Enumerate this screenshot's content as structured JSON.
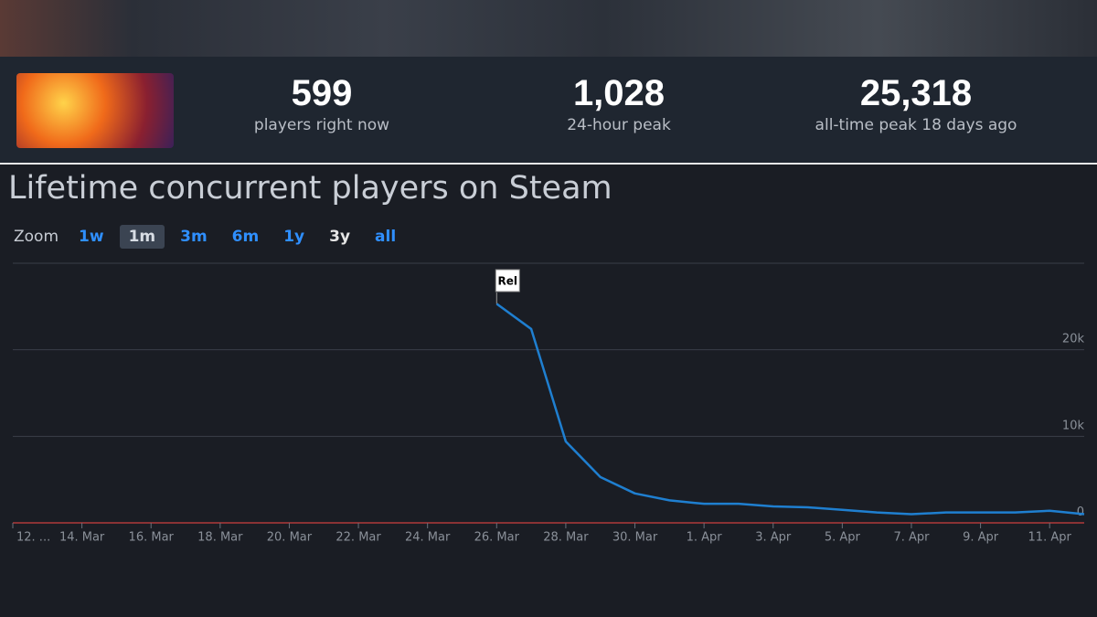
{
  "header": {
    "stats": [
      {
        "value": "599",
        "label": "players right now"
      },
      {
        "value": "1,028",
        "label": "24-hour peak"
      },
      {
        "value": "25,318",
        "label": "all-time peak 18 days ago"
      }
    ]
  },
  "zoom": {
    "label": "Zoom",
    "buttons": [
      "1w",
      "1m",
      "3m",
      "6m",
      "1y",
      "3y",
      "all"
    ]
  },
  "chart_data": {
    "type": "line",
    "title": "Lifetime concurrent players on Steam",
    "x": [
      "26. Mar",
      "27. Mar",
      "28. Mar",
      "29. Mar",
      "30. Mar",
      "31. Mar",
      "1. Apr",
      "2. Apr",
      "3. Apr",
      "4. Apr",
      "5. Apr",
      "6. Apr",
      "7. Apr",
      "8. Apr",
      "9. Apr",
      "10. Apr",
      "11. Apr",
      "12. Apr"
    ],
    "values": [
      25318,
      22400,
      9400,
      5300,
      3400,
      2600,
      2200,
      2200,
      1900,
      1800,
      1500,
      1200,
      1000,
      1200,
      1200,
      1200,
      1400,
      1000
    ],
    "color": "#1f7fd0",
    "xlim": [
      "12. Mar",
      "12. Apr"
    ],
    "xticks": [
      {
        "value": "12. Mar",
        "label": "12. ..."
      },
      "14. Mar",
      "16. Mar",
      "18. Mar",
      "20. Mar",
      "22. Mar",
      "24. Mar",
      "26. Mar",
      "28. Mar",
      "30. Mar",
      "1. Apr",
      "3. Apr",
      "5. Apr",
      "7. Apr",
      "9. Apr",
      "11. Apr"
    ],
    "ylim": [
      0,
      30000
    ],
    "yticks": [
      {
        "value": 0,
        "label": "0"
      },
      {
        "value": 10000,
        "label": "10k"
      },
      {
        "value": 20000,
        "label": "20k"
      }
    ],
    "grid": true,
    "annotations": [
      {
        "x": "26. Mar",
        "text": "Rel"
      }
    ]
  }
}
